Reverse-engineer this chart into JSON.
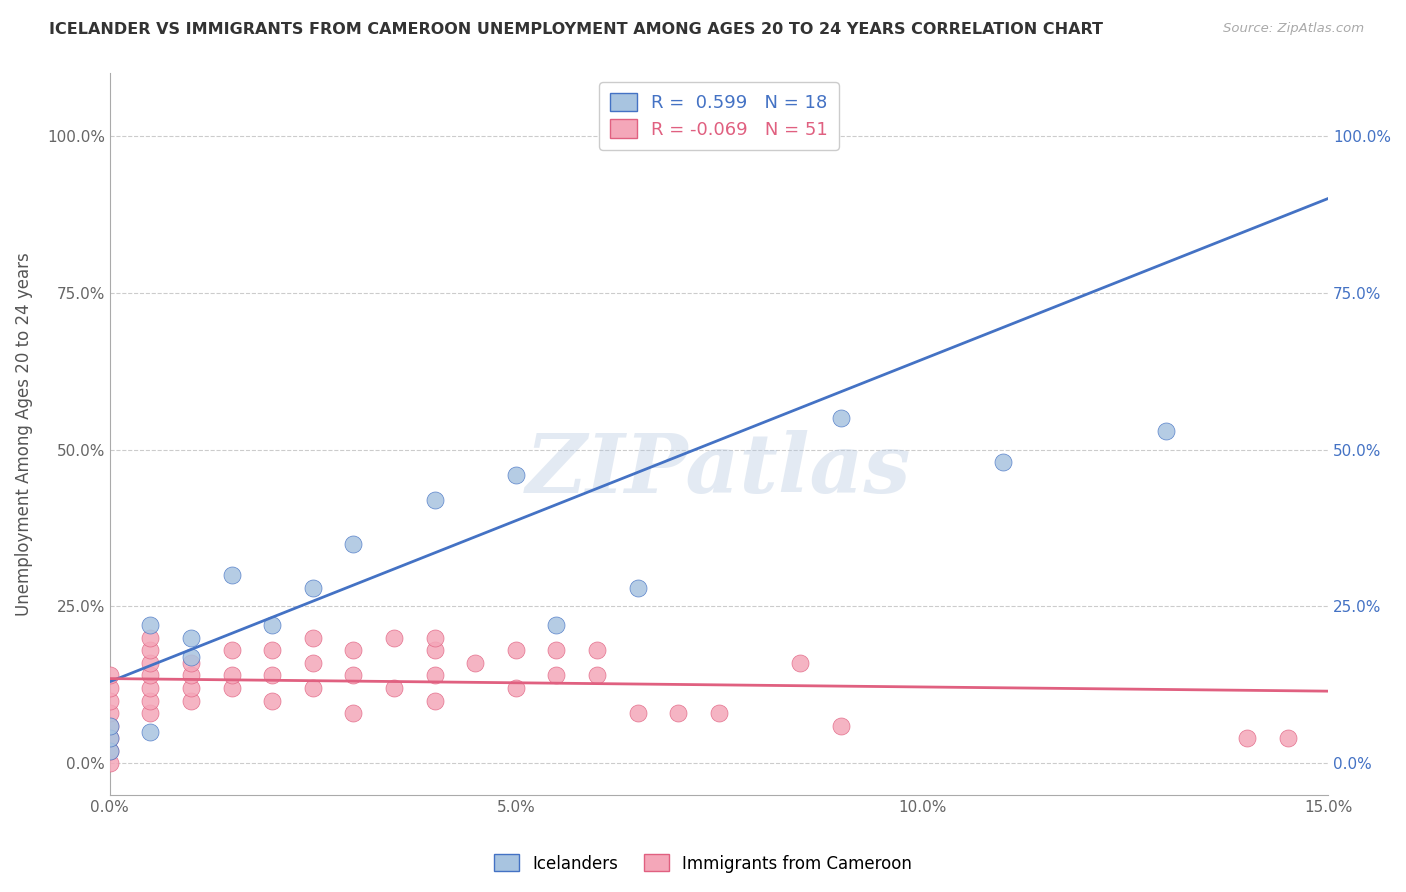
{
  "title": "ICELANDER VS IMMIGRANTS FROM CAMEROON UNEMPLOYMENT AMONG AGES 20 TO 24 YEARS CORRELATION CHART",
  "source": "Source: ZipAtlas.com",
  "ylabel": "Unemployment Among Ages 20 to 24 years",
  "xlim": [
    0.0,
    0.15
  ],
  "ylim": [
    -0.05,
    1.1
  ],
  "yticks": [
    0.0,
    0.25,
    0.5,
    0.75,
    1.0
  ],
  "ytick_labels": [
    "0.0%",
    "25.0%",
    "50.0%",
    "75.0%",
    "100.0%"
  ],
  "xticks": [
    0.0,
    0.05,
    0.1,
    0.15
  ],
  "xtick_labels": [
    "0.0%",
    "5.0%",
    "10.0%",
    "15.0%"
  ],
  "legend1_label": "Icelanders",
  "legend2_label": "Immigrants from Cameroon",
  "r1": 0.599,
  "n1": 18,
  "r2": -0.069,
  "n2": 51,
  "color1": "#a8c4e0",
  "color2": "#f4a7b9",
  "line_color1": "#4472c4",
  "line_color2": "#e06080",
  "watermark": "ZIPatlas",
  "icelander_x": [
    0.0,
    0.0,
    0.0,
    0.005,
    0.005,
    0.01,
    0.01,
    0.015,
    0.02,
    0.025,
    0.03,
    0.04,
    0.05,
    0.055,
    0.065,
    0.09,
    0.11,
    0.13
  ],
  "icelander_y": [
    0.02,
    0.04,
    0.06,
    0.05,
    0.22,
    0.17,
    0.2,
    0.3,
    0.22,
    0.28,
    0.35,
    0.42,
    0.46,
    0.22,
    0.28,
    0.55,
    0.48,
    0.53
  ],
  "cameroon_x": [
    0.0,
    0.0,
    0.0,
    0.0,
    0.0,
    0.0,
    0.0,
    0.0,
    0.005,
    0.005,
    0.005,
    0.005,
    0.005,
    0.005,
    0.005,
    0.01,
    0.01,
    0.01,
    0.01,
    0.015,
    0.015,
    0.015,
    0.02,
    0.02,
    0.02,
    0.025,
    0.025,
    0.025,
    0.03,
    0.03,
    0.03,
    0.035,
    0.035,
    0.04,
    0.04,
    0.04,
    0.04,
    0.045,
    0.05,
    0.05,
    0.055,
    0.055,
    0.06,
    0.06,
    0.065,
    0.07,
    0.075,
    0.085,
    0.09,
    0.14,
    0.145
  ],
  "cameroon_y": [
    0.0,
    0.02,
    0.04,
    0.06,
    0.08,
    0.1,
    0.12,
    0.14,
    0.08,
    0.1,
    0.12,
    0.14,
    0.16,
    0.18,
    0.2,
    0.1,
    0.12,
    0.14,
    0.16,
    0.12,
    0.14,
    0.18,
    0.1,
    0.14,
    0.18,
    0.12,
    0.16,
    0.2,
    0.08,
    0.14,
    0.18,
    0.12,
    0.2,
    0.1,
    0.14,
    0.18,
    0.2,
    0.16,
    0.12,
    0.18,
    0.14,
    0.18,
    0.14,
    0.18,
    0.08,
    0.08,
    0.08,
    0.16,
    0.06,
    0.04,
    0.04
  ],
  "blue_line_x": [
    0.0,
    0.15
  ],
  "blue_line_y": [
    0.13,
    0.9
  ],
  "pink_line_x": [
    0.0,
    0.15
  ],
  "pink_line_y": [
    0.135,
    0.115
  ]
}
